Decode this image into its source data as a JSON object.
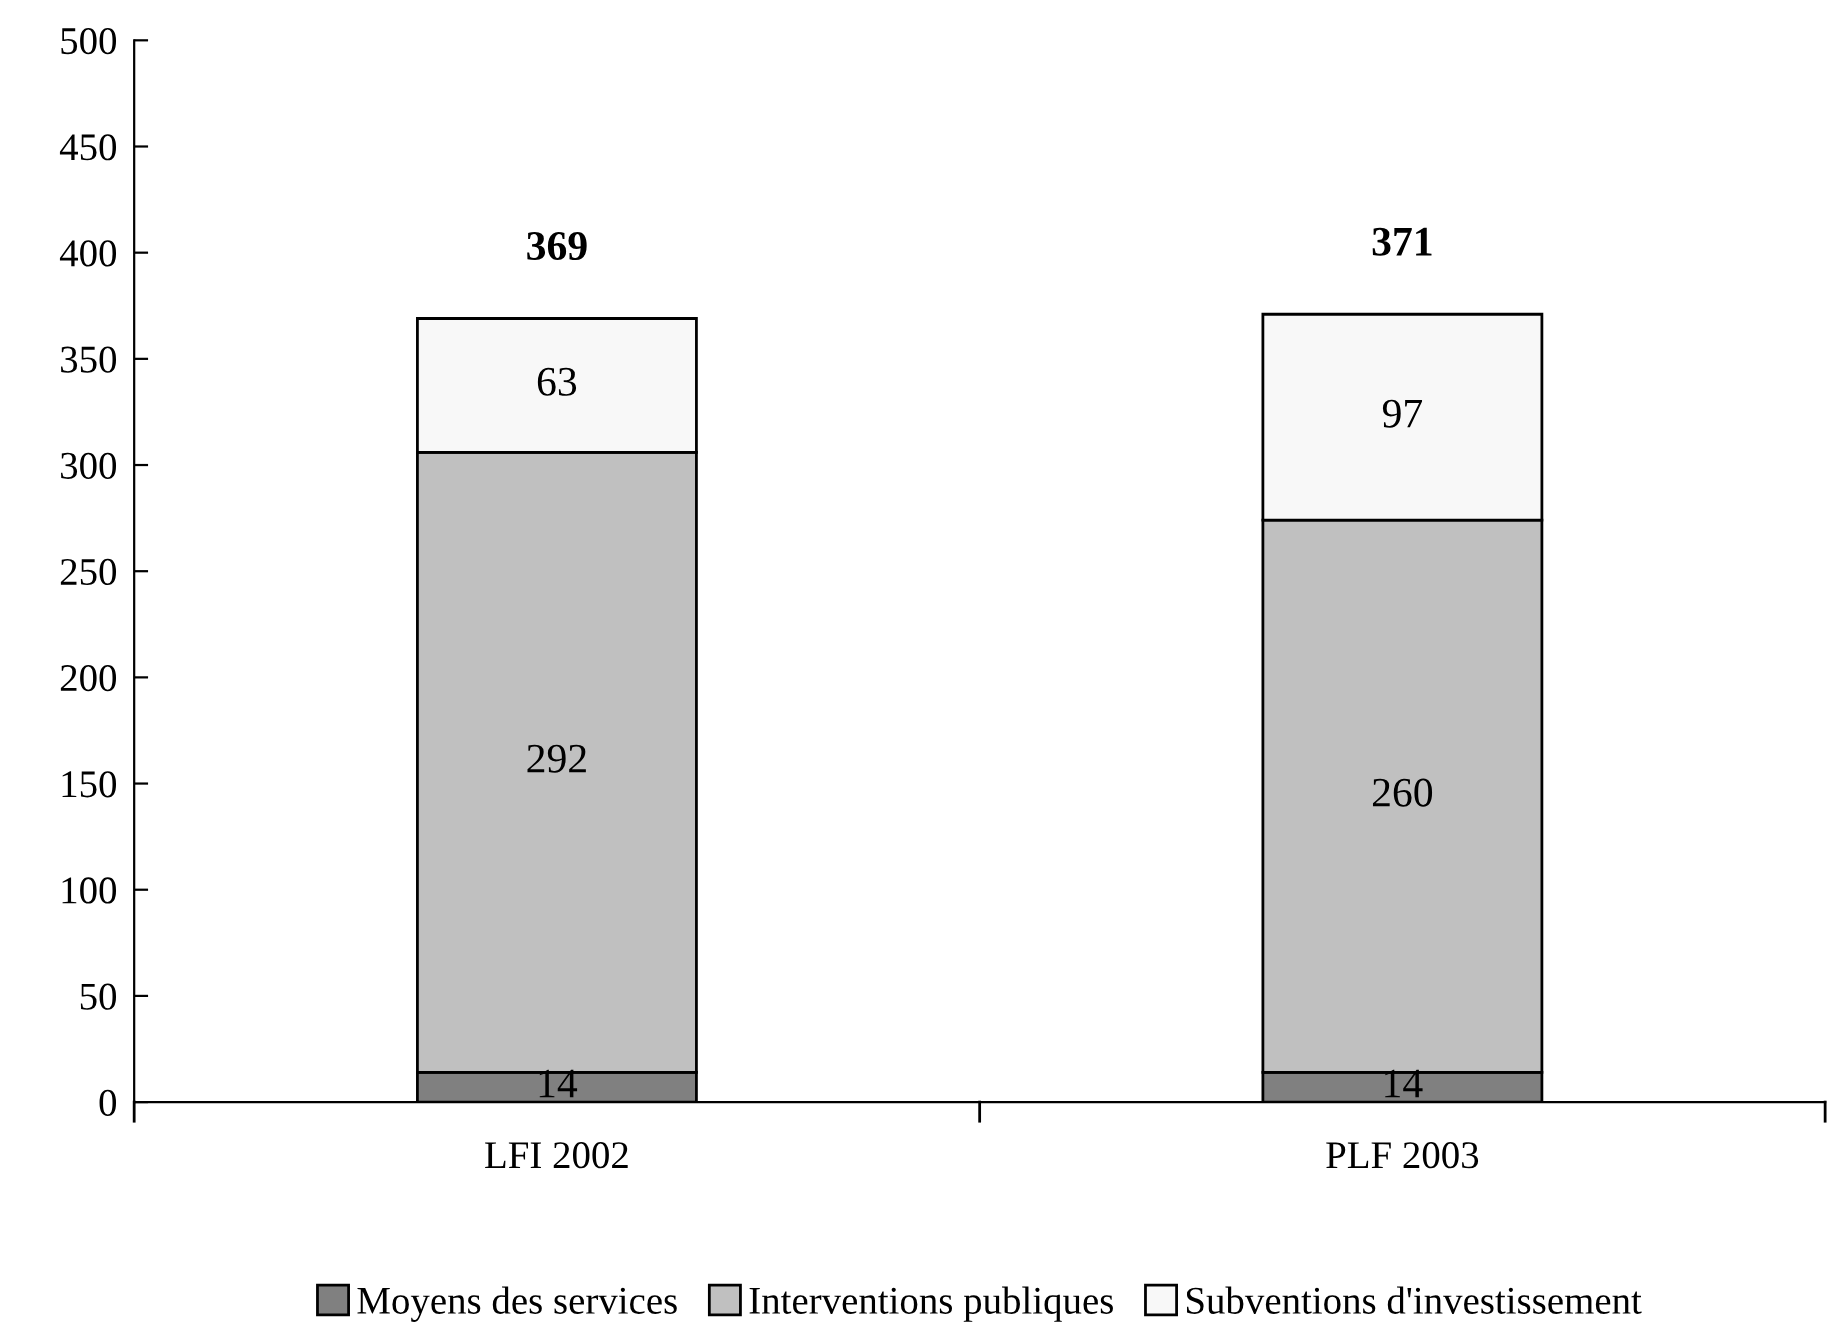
{
  "chart_data": {
    "type": "bar",
    "stacked": true,
    "categories": [
      "LFI 2002",
      "PLF 2003"
    ],
    "series": [
      {
        "name": "Moyens des services",
        "color": "#808080",
        "values": [
          14,
          14
        ]
      },
      {
        "name": "Interventions publiques",
        "color": "#c0c0c0",
        "values": [
          292,
          260
        ]
      },
      {
        "name": "Subventions d'investissement",
        "color": "#f8f8f8",
        "values": [
          63,
          97
        ]
      }
    ],
    "totals": [
      "369",
      "371"
    ],
    "data_labels": true,
    "ylim": [
      0,
      500
    ],
    "yticks": [
      0,
      50,
      100,
      150,
      200,
      250,
      300,
      350,
      400,
      450,
      500
    ],
    "grid": false,
    "legend": "bottom"
  }
}
